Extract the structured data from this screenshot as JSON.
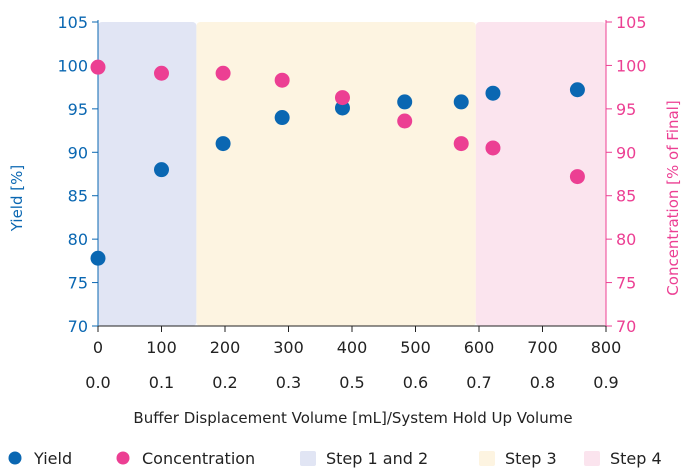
{
  "chart_data": {
    "type": "scatter",
    "title": "",
    "xlabel": "Buffer Displacement Volume [mL]/System Hold Up Volume",
    "x_ticks_primary": [
      "0",
      "100",
      "200",
      "300",
      "400",
      "500",
      "600",
      "700",
      "800"
    ],
    "x_ticks_secondary": [
      "0.0",
      "0.1",
      "0.2",
      "0.3",
      "0.5",
      "0.6",
      "0.7",
      "0.8",
      "0.9"
    ],
    "xlim": [
      0,
      800
    ],
    "ylabel_left": "Yield [%]",
    "ylabel_right": "Concentration [% of Final]",
    "y_ticks": [
      "70",
      "75",
      "80",
      "85",
      "90",
      "95",
      "100",
      "105"
    ],
    "ylim": [
      70,
      105
    ],
    "grid": false,
    "legend_position": "bottom",
    "regions": [
      {
        "name": "Step 1 and 2",
        "x_start": 0,
        "x_end": 155,
        "color": "#e1e5f4"
      },
      {
        "name": "Step 3",
        "x_start": 155,
        "x_end": 595,
        "color": "#fdf4e1"
      },
      {
        "name": "Step 4",
        "x_start": 595,
        "x_end": 800,
        "color": "#fbe4ee"
      }
    ],
    "series": [
      {
        "name": "Yield",
        "color": "#0a67b2",
        "axis": "left",
        "x": [
          0,
          100,
          197,
          290,
          385,
          483,
          572,
          622,
          755
        ],
        "y": [
          77.8,
          88.0,
          91.0,
          94.0,
          95.1,
          95.8,
          95.8,
          96.8,
          97.2
        ]
      },
      {
        "name": "Concentration",
        "color": "#ec3f93",
        "axis": "right",
        "x": [
          0,
          100,
          197,
          290,
          385,
          483,
          572,
          622,
          755
        ],
        "y": [
          99.8,
          99.1,
          99.1,
          98.3,
          96.3,
          93.6,
          91.0,
          90.5,
          87.2
        ]
      }
    ],
    "axis_colors": {
      "left": "#0a67b2",
      "right": "#ec3f93",
      "x": "#222222"
    }
  }
}
